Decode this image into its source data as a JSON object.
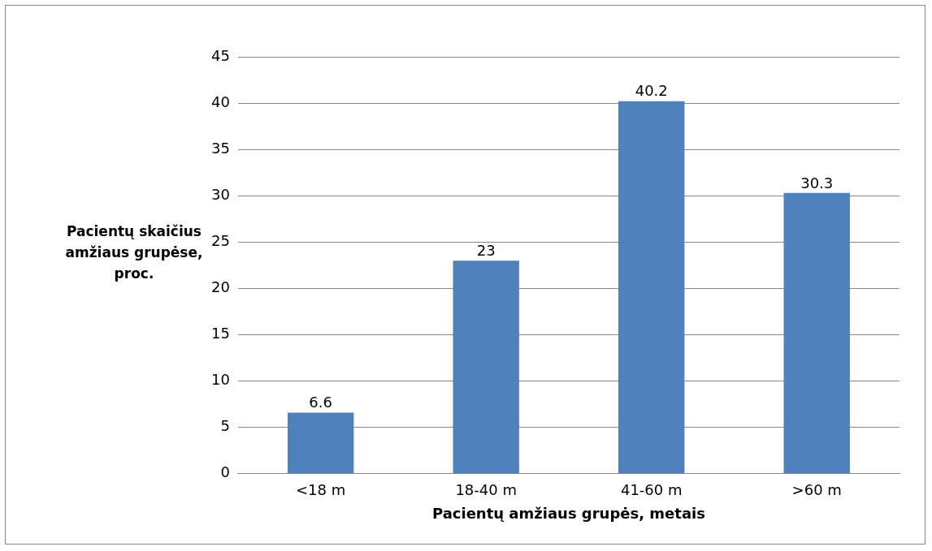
{
  "chart_data": {
    "type": "bar",
    "xlabel": "Pacientų amžiaus grupės, metais",
    "ylabel": "Pacientų skaičius amžiaus grupėse, proc.",
    "categories": [
      "<18 m",
      "18-40 m",
      "41-60 m",
      ">60 m"
    ],
    "values": [
      6.6,
      23,
      40.2,
      30.3
    ],
    "color": "#4f81bd",
    "ylim": [
      0,
      45
    ],
    "yticks": [
      0,
      5,
      10,
      15,
      20,
      25,
      30,
      35,
      40,
      45
    ],
    "grid": "y",
    "data_labels": true,
    "legend": false
  }
}
